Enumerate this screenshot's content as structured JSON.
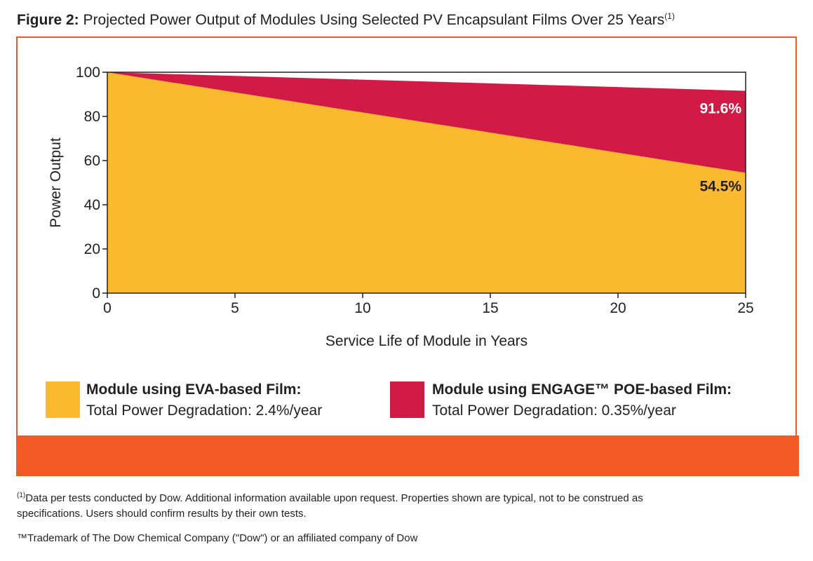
{
  "figure": {
    "label": "Figure 2:",
    "title": "Projected Power Output of Modules Using Selected PV Encapsulant Films Over 25 Years",
    "title_sup": "(1)"
  },
  "colors": {
    "eva": "#fbb930",
    "engage": "#d21a47",
    "accent": "#f15a24",
    "text": "#231f20"
  },
  "chart_data": {
    "type": "area",
    "title": "Projected Power Output of Modules Using Selected PV Encapsulant Films Over 25 Years",
    "xlabel": "Service Life of Module in Years",
    "ylabel": "Power Output",
    "xlim": [
      0,
      25
    ],
    "ylim": [
      0,
      100
    ],
    "xticks": [
      0,
      5,
      10,
      15,
      20,
      25
    ],
    "yticks": [
      0,
      20,
      40,
      60,
      80,
      100
    ],
    "grid": false,
    "legend_placement": "bottom",
    "series": [
      {
        "name": "Module using ENGAGE™ POE-based Film:",
        "x": [
          0,
          25
        ],
        "y": [
          100,
          91.6
        ],
        "end_label": "91.6%",
        "color": "#d21a47"
      },
      {
        "name": "Module using EVA-based Film:",
        "x": [
          0,
          25
        ],
        "y": [
          100,
          54.5
        ],
        "end_label": "54.5%",
        "color": "#fbb930"
      }
    ]
  },
  "legend": {
    "eva_title": "Module using EVA-based Film:",
    "eva_sub": "Total Power Degradation: 2.4%/year",
    "engage_title": "Module using ENGAGE™ POE-based Film:",
    "engage_sub": "Total Power Degradation: 0.35%/year"
  },
  "footnotes": {
    "note1_sup": "(1)",
    "note1_line1": "Data per tests conducted by Dow. Additional information available upon request. Properties shown are typical, not to be construed as",
    "note1_line2": "specifications. Users should confirm results by their own tests.",
    "trademark": "™Trademark of The Dow Chemical Company (\"Dow\") or an affiliated company of Dow"
  }
}
